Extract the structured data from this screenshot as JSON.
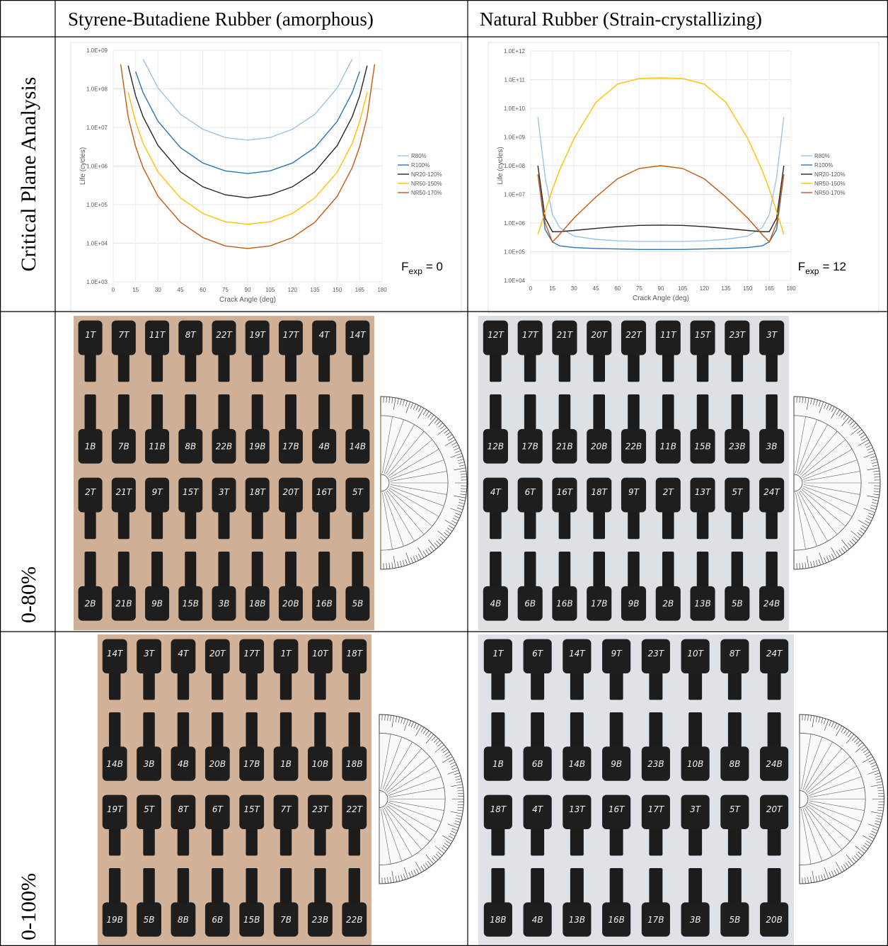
{
  "table": {
    "column_headers": [
      "Styrene-Butadiene Rubber (amorphous)",
      "Natural Rubber (Strain-crystallizing)"
    ],
    "row_labels": [
      "Critical Plane Analysis",
      "0-80%",
      "0-100%"
    ]
  },
  "chart_data": [
    {
      "type": "line",
      "x_label": "Crack Angle (deg)",
      "y_label": "Life (cycles)",
      "yscale": "log",
      "grid": true,
      "legend": "right",
      "annotation": {
        "main": "F",
        "sub": "exp",
        "rest": "= 0"
      },
      "xlim": [
        0,
        180
      ],
      "xticks": [
        0,
        15,
        30,
        45,
        60,
        75,
        90,
        105,
        120,
        135,
        150,
        165,
        180
      ],
      "ylim": [
        1000,
        1000000000
      ],
      "yticks": [
        {
          "value": 1000,
          "label": "1.0E+03"
        },
        {
          "value": 10000,
          "label": "1.0E+04"
        },
        {
          "value": 100000,
          "label": "1.0E+05"
        },
        {
          "value": 1000000,
          "label": "1.0E+06"
        },
        {
          "value": 10000000,
          "label": "1.0E+07"
        },
        {
          "value": 100000000,
          "label": "1.0E+08"
        },
        {
          "value": 1000000000,
          "label": "1.0E+09"
        }
      ],
      "x": [
        5,
        10,
        15,
        20,
        30,
        45,
        60,
        75,
        90,
        105,
        120,
        135,
        150,
        160,
        165,
        170,
        175
      ],
      "series": [
        {
          "name": "R80%",
          "color": "#9dc3e6",
          "values": [
            null,
            null,
            null,
            590000000,
            106000000,
            22000000,
            9000000,
            5500000,
            4700000,
            5500000,
            9000000,
            22000000,
            106000000,
            590000000,
            null,
            null,
            null
          ]
        },
        {
          "name": "R100%",
          "color": "#2e75b6",
          "values": [
            null,
            null,
            280000000,
            80000000,
            14500000,
            3000000,
            1200000,
            750000,
            640000,
            750000,
            1200000,
            3000000,
            14500000,
            80000000,
            280000000,
            null,
            null
          ]
        },
        {
          "name": "NR20-120%",
          "color": "#262626",
          "values": [
            null,
            400000000,
            66000000,
            19000000,
            3400000,
            710000,
            290000,
            180000,
            150000,
            180000,
            290000,
            710000,
            3400000,
            19000000,
            66000000,
            400000000,
            null
          ]
        },
        {
          "name": "NR50-150%",
          "color": "#ffc000",
          "values": [
            null,
            82000000,
            14000000,
            3900000,
            700000,
            150000,
            59000,
            36000,
            31000,
            36000,
            59000,
            150000,
            700000,
            3900000,
            14000000,
            82000000,
            null
          ]
        },
        {
          "name": "NR50-170%",
          "color": "#c55a11",
          "values": [
            430000000,
            19000000,
            3200000,
            910000,
            165000,
            35000,
            14000,
            8500,
            7300,
            8500,
            14000,
            35000,
            165000,
            910000,
            3200000,
            19000000,
            430000000
          ]
        }
      ]
    },
    {
      "type": "line",
      "x_label": "Crack Angle (deg)",
      "y_label": "Life (cycles)",
      "yscale": "log",
      "grid": true,
      "legend": "right",
      "annotation": {
        "main": "F",
        "sub": "exp",
        "rest": "= 12"
      },
      "xlim": [
        0,
        180
      ],
      "xticks": [
        0,
        15,
        30,
        45,
        60,
        75,
        90,
        105,
        120,
        135,
        150,
        165,
        180
      ],
      "ylim": [
        10000,
        1000000000000
      ],
      "yticks": [
        {
          "value": 10000,
          "label": "1.0E+04"
        },
        {
          "value": 100000,
          "label": "1.0E+05"
        },
        {
          "value": 1000000,
          "label": "1.0E+06"
        },
        {
          "value": 10000000,
          "label": "1.0E+07"
        },
        {
          "value": 100000000,
          "label": "1.0E+08"
        },
        {
          "value": 1000000000,
          "label": "1.0E+09"
        },
        {
          "value": 10000000000,
          "label": "1.0E+10"
        },
        {
          "value": 100000000000,
          "label": "1.0E+11"
        },
        {
          "value": 1000000000000,
          "label": "1.0E+12"
        }
      ],
      "x": [
        5,
        10,
        15,
        20,
        30,
        45,
        60,
        75,
        90,
        105,
        120,
        135,
        150,
        160,
        165,
        170,
        175
      ],
      "series": [
        {
          "name": "R80%",
          "color": "#9dc3e6",
          "values": [
            5000000000,
            40000000,
            2000000,
            700000,
            350000,
            270000,
            240000,
            230000,
            230000,
            230000,
            240000,
            270000,
            350000,
            700000,
            2000000,
            40000000,
            5000000000
          ]
        },
        {
          "name": "R100%",
          "color": "#2e75b6",
          "values": [
            50000000,
            600000,
            220000,
            160000,
            140000,
            130000,
            125000,
            120000,
            120000,
            120000,
            125000,
            130000,
            140000,
            160000,
            220000,
            600000,
            50000000
          ]
        },
        {
          "name": "NR20-120%",
          "color": "#262626",
          "values": [
            100000000,
            1500000,
            500000,
            500000,
            550000,
            650000,
            750000,
            830000,
            850000,
            830000,
            750000,
            650000,
            550000,
            500000,
            500000,
            1500000,
            100000000
          ]
        },
        {
          "name": "NR50-150%",
          "color": "#ffc000",
          "values": [
            400000,
            2500000,
            15000000,
            70000000,
            900000000,
            16000000000,
            70000000000,
            110000000000,
            115000000000,
            110000000000,
            70000000000,
            16000000000,
            900000000,
            70000000,
            15000000,
            2500000,
            400000
          ]
        },
        {
          "name": "NR50-170%",
          "color": "#c55a11",
          "values": [
            50000000,
            1000000,
            220000,
            400000,
            1500000,
            8000000,
            35000000,
            80000000,
            100000000,
            80000000,
            35000000,
            8000000,
            1500000,
            400000,
            220000,
            1000000,
            50000000
          ]
        }
      ]
    }
  ],
  "photos": [
    {
      "labels": [
        [
          "1T",
          "7T",
          "11T",
          "8T",
          "22T",
          "19T",
          "17T",
          "4T",
          "14T"
        ],
        [
          "1B",
          "7B",
          "11B",
          "8B",
          "22B",
          "19B",
          "17B",
          "4B",
          "14B"
        ],
        [
          "2T",
          "21T",
          "9T",
          "15T",
          "3T",
          "18T",
          "20T",
          "16T",
          "5T"
        ],
        [
          "2B",
          "21B",
          "9B",
          "15B",
          "3B",
          "18B",
          "20B",
          "16B",
          "5B"
        ]
      ]
    },
    {
      "labels": [
        [
          "12T",
          "17T",
          "21T",
          "20T",
          "22T",
          "11T",
          "15T",
          "23T",
          "3T"
        ],
        [
          "12B",
          "17B",
          "21B",
          "20B",
          "22B",
          "11B",
          "15B",
          "23B",
          "3B"
        ],
        [
          "4T",
          "6T",
          "16T",
          "18T",
          "9T",
          "2T",
          "13T",
          "5T",
          "24T"
        ],
        [
          "4B",
          "6B",
          "16B",
          "17B",
          "9B",
          "2B",
          "13B",
          "5B",
          "24B"
        ]
      ]
    },
    {
      "labels": [
        [
          "14T",
          "3T",
          "4T",
          "20T",
          "17T",
          "1T",
          "10T",
          "18T"
        ],
        [
          "14B",
          "3B",
          "4B",
          "20B",
          "17B",
          "1B",
          "10B",
          "18B"
        ],
        [
          "19T",
          "5T",
          "8T",
          "6T",
          "15T",
          "7T",
          "23T",
          "22T"
        ],
        [
          "19B",
          "5B",
          "8B",
          "6B",
          "15B",
          "7B",
          "23B",
          "22B"
        ]
      ]
    },
    {
      "labels": [
        [
          "1T",
          "6T",
          "14T",
          "9T",
          "23T",
          "10T",
          "8T",
          "24T"
        ],
        [
          "1B",
          "6B",
          "14B",
          "9B",
          "23B",
          "10B",
          "8B",
          "24B"
        ],
        [
          "18T",
          "4T",
          "13T",
          "16T",
          "17T",
          "3T",
          "5T",
          "20T"
        ],
        [
          "18B",
          "4B",
          "13B",
          "16B",
          "17B",
          "3B",
          "5B",
          "20B"
        ]
      ]
    }
  ]
}
